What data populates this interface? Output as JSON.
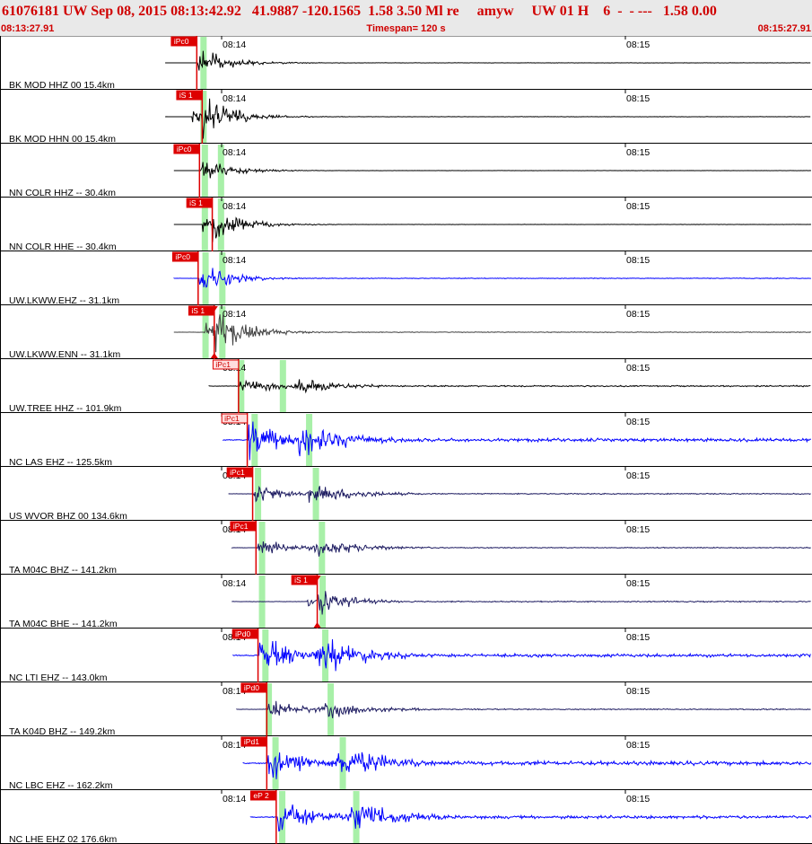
{
  "header": {
    "title": "61076181 UW Sep 08, 2015 08:13:42.92   41.9887 -120.1565  1.58 3.50 Ml re     amyw     UW 01 H    6  -  - ---   1.58 0.00",
    "start_time": "08:13:27.91",
    "timespan": "Timespan= 120 s",
    "end_time": "08:15:27.91"
  },
  "time_window": {
    "start_s": 0,
    "span_s": 120,
    "minute_labels": [
      {
        "t": 12.09,
        "label": "08:14"
      },
      {
        "t": 72.09,
        "label": "08:15"
      }
    ]
  },
  "colors": {
    "pick": "#dd0000",
    "green_band": "#a8f0a8",
    "black": "#000000",
    "blue": "#0000ff",
    "navy": "#1c1a60",
    "gray": "#404040"
  },
  "traces": [
    {
      "label": "BK MOD HHZ 00 15.4km",
      "color": "#000000",
      "pick": "iPc0",
      "pick_t": 8.4,
      "bands": [
        9.4
      ],
      "pre_start": 3.7,
      "mode": "p",
      "amp": 0.75,
      "tail": 0.01
    },
    {
      "label": "BK MOD HHN 00 15.4km",
      "color": "#000000",
      "pick": "iS 1",
      "pick_t": 9.2,
      "bands": [
        9.4
      ],
      "pre_start": 3.7,
      "mode": "s",
      "amp": 0.8,
      "tail": 0.01,
      "pick_p": "iPc0"
    },
    {
      "label": "NN COLR HHZ -- 30.4km",
      "color": "#000000",
      "pick": "iPc0",
      "pick_t": 8.8,
      "bands": [
        9.6,
        12.0
      ],
      "pre_start": 5.0,
      "mode": "p",
      "amp": 0.55,
      "tail": 0.01
    },
    {
      "label": "NN COLR HHE -- 30.4km",
      "color": "#000000",
      "pick": "iS 1",
      "pick_t": 10.7,
      "bands": [
        9.6,
        12.0
      ],
      "pre_start": 5.0,
      "mode": "s",
      "amp": 0.65,
      "tail": 0.01
    },
    {
      "label": "UW.LKWW.EHZ -- 31.1km",
      "color": "#0000ff",
      "pick": "iPc0",
      "pick_t": 8.6,
      "bands": [
        9.7,
        12.2
      ],
      "pre_start": 5.0,
      "mode": "p",
      "amp": 0.8,
      "tail": 0.02
    },
    {
      "label": "UW.LKWW.ENN -- 31.1km",
      "color": "#404040",
      "pick": "iS 1",
      "pick_t": 11.0,
      "bands": [
        9.7,
        12.2
      ],
      "pre_start": 5.0,
      "mode": "s",
      "amp": 0.85,
      "tail": 0.02,
      "tri": true
    },
    {
      "label": "UW.TREE HHZ -- 101.9km",
      "color": "#000000",
      "pick": "iPc1",
      "pick_t": 14.6,
      "bands": [
        15.0,
        21.2
      ],
      "pre_start": 10.2,
      "mode": "both",
      "amp": 0.4,
      "tail": 0.08,
      "s_t": 24.0
    },
    {
      "label": "NC LAS EHZ -- 125.5km",
      "color": "#0000ff",
      "pick": "iPc1",
      "pick_t": 15.9,
      "bands": [
        17.0,
        25.1
      ],
      "pre_start": 12.3,
      "mode": "both",
      "amp": 0.95,
      "tail": 0.08,
      "s_t": 24.8
    },
    {
      "label": "US WVOR BHZ 00 134.6km",
      "color": "#1c1a60",
      "pick": "iPc1",
      "pick_t": 16.7,
      "bands": [
        17.5,
        26.1
      ],
      "pre_start": 13.1,
      "mode": "both",
      "amp": 0.5,
      "tail": 0.05,
      "s_t": 26.0
    },
    {
      "label": "TA M04C BHZ -- 141.2km",
      "color": "#1c1a60",
      "pick": "iPc1",
      "pick_t": 17.2,
      "bands": [
        18.1,
        27.0
      ],
      "pre_start": 13.6,
      "mode": "both",
      "amp": 0.45,
      "tail": 0.05,
      "s_t": 27.0
    },
    {
      "label": "TA M04C BHE -- 141.2km",
      "color": "#1c1a60",
      "pick": "iS 1",
      "pick_t": 26.3,
      "bands": [
        18.1,
        27.1
      ],
      "pre_start": 13.6,
      "mode": "s",
      "amp": 0.55,
      "tail": 0.05,
      "tri": true
    },
    {
      "label": "NC LTI EHZ -- 143.0km",
      "color": "#0000ff",
      "pick": "iPd0",
      "pick_t": 17.5,
      "bands": [
        18.6,
        27.5
      ],
      "pre_start": 13.8,
      "mode": "both",
      "amp": 0.95,
      "tail": 0.08,
      "s_t": 27.5
    },
    {
      "label": "TA K04D BHZ -- 149.2km",
      "color": "#1c1a60",
      "pick": "iPd0",
      "pick_t": 18.8,
      "bands": [
        19.1,
        28.3
      ],
      "pre_start": 14.3,
      "mode": "both",
      "amp": 0.45,
      "tail": 0.06,
      "s_t": 28.5
    },
    {
      "label": "NC LBC EHZ -- 162.2km",
      "color": "#0000ff",
      "pick": "iPd1",
      "pick_t": 18.8,
      "bands": [
        20.1,
        30.1
      ],
      "pre_start": 15.3,
      "mode": "both",
      "amp": 0.95,
      "tail": 0.1,
      "s_t": 30.5
    },
    {
      "label": "NC LHE EHZ 02 176.6km",
      "color": "#0000ff",
      "pick": "eP 2",
      "pick_t": 20.2,
      "bands": [
        21.1,
        32.1
      ],
      "pre_start": 16.4,
      "mode": "both",
      "amp": 0.9,
      "tail": 0.08,
      "s_t": 32.0
    }
  ]
}
